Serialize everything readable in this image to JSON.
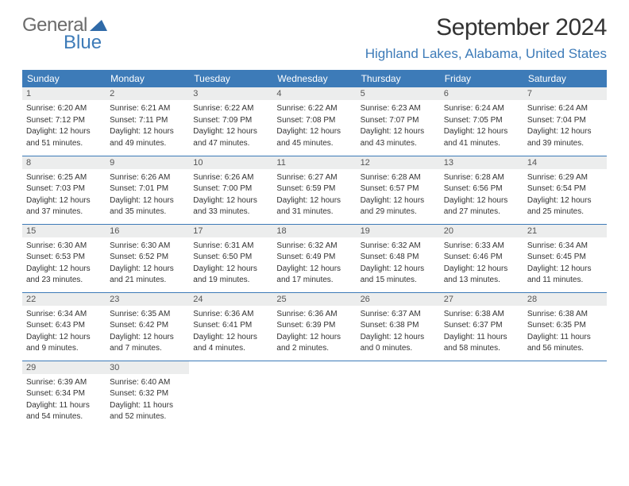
{
  "brand": {
    "name1": "General",
    "name2": "Blue",
    "triangle_color": "#2f6aa8"
  },
  "title": "September 2024",
  "location": "Highland Lakes, Alabama, United States",
  "colors": {
    "header_bg": "#3d7bb8",
    "daynum_bg": "#eceded",
    "rule": "#3d7bb8",
    "text": "#333333"
  },
  "day_headers": [
    "Sunday",
    "Monday",
    "Tuesday",
    "Wednesday",
    "Thursday",
    "Friday",
    "Saturday"
  ],
  "weeks": [
    [
      {
        "n": "1",
        "sr": "Sunrise: 6:20 AM",
        "ss": "Sunset: 7:12 PM",
        "d1": "Daylight: 12 hours",
        "d2": "and 51 minutes."
      },
      {
        "n": "2",
        "sr": "Sunrise: 6:21 AM",
        "ss": "Sunset: 7:11 PM",
        "d1": "Daylight: 12 hours",
        "d2": "and 49 minutes."
      },
      {
        "n": "3",
        "sr": "Sunrise: 6:22 AM",
        "ss": "Sunset: 7:09 PM",
        "d1": "Daylight: 12 hours",
        "d2": "and 47 minutes."
      },
      {
        "n": "4",
        "sr": "Sunrise: 6:22 AM",
        "ss": "Sunset: 7:08 PM",
        "d1": "Daylight: 12 hours",
        "d2": "and 45 minutes."
      },
      {
        "n": "5",
        "sr": "Sunrise: 6:23 AM",
        "ss": "Sunset: 7:07 PM",
        "d1": "Daylight: 12 hours",
        "d2": "and 43 minutes."
      },
      {
        "n": "6",
        "sr": "Sunrise: 6:24 AM",
        "ss": "Sunset: 7:05 PM",
        "d1": "Daylight: 12 hours",
        "d2": "and 41 minutes."
      },
      {
        "n": "7",
        "sr": "Sunrise: 6:24 AM",
        "ss": "Sunset: 7:04 PM",
        "d1": "Daylight: 12 hours",
        "d2": "and 39 minutes."
      }
    ],
    [
      {
        "n": "8",
        "sr": "Sunrise: 6:25 AM",
        "ss": "Sunset: 7:03 PM",
        "d1": "Daylight: 12 hours",
        "d2": "and 37 minutes."
      },
      {
        "n": "9",
        "sr": "Sunrise: 6:26 AM",
        "ss": "Sunset: 7:01 PM",
        "d1": "Daylight: 12 hours",
        "d2": "and 35 minutes."
      },
      {
        "n": "10",
        "sr": "Sunrise: 6:26 AM",
        "ss": "Sunset: 7:00 PM",
        "d1": "Daylight: 12 hours",
        "d2": "and 33 minutes."
      },
      {
        "n": "11",
        "sr": "Sunrise: 6:27 AM",
        "ss": "Sunset: 6:59 PM",
        "d1": "Daylight: 12 hours",
        "d2": "and 31 minutes."
      },
      {
        "n": "12",
        "sr": "Sunrise: 6:28 AM",
        "ss": "Sunset: 6:57 PM",
        "d1": "Daylight: 12 hours",
        "d2": "and 29 minutes."
      },
      {
        "n": "13",
        "sr": "Sunrise: 6:28 AM",
        "ss": "Sunset: 6:56 PM",
        "d1": "Daylight: 12 hours",
        "d2": "and 27 minutes."
      },
      {
        "n": "14",
        "sr": "Sunrise: 6:29 AM",
        "ss": "Sunset: 6:54 PM",
        "d1": "Daylight: 12 hours",
        "d2": "and 25 minutes."
      }
    ],
    [
      {
        "n": "15",
        "sr": "Sunrise: 6:30 AM",
        "ss": "Sunset: 6:53 PM",
        "d1": "Daylight: 12 hours",
        "d2": "and 23 minutes."
      },
      {
        "n": "16",
        "sr": "Sunrise: 6:30 AM",
        "ss": "Sunset: 6:52 PM",
        "d1": "Daylight: 12 hours",
        "d2": "and 21 minutes."
      },
      {
        "n": "17",
        "sr": "Sunrise: 6:31 AM",
        "ss": "Sunset: 6:50 PM",
        "d1": "Daylight: 12 hours",
        "d2": "and 19 minutes."
      },
      {
        "n": "18",
        "sr": "Sunrise: 6:32 AM",
        "ss": "Sunset: 6:49 PM",
        "d1": "Daylight: 12 hours",
        "d2": "and 17 minutes."
      },
      {
        "n": "19",
        "sr": "Sunrise: 6:32 AM",
        "ss": "Sunset: 6:48 PM",
        "d1": "Daylight: 12 hours",
        "d2": "and 15 minutes."
      },
      {
        "n": "20",
        "sr": "Sunrise: 6:33 AM",
        "ss": "Sunset: 6:46 PM",
        "d1": "Daylight: 12 hours",
        "d2": "and 13 minutes."
      },
      {
        "n": "21",
        "sr": "Sunrise: 6:34 AM",
        "ss": "Sunset: 6:45 PM",
        "d1": "Daylight: 12 hours",
        "d2": "and 11 minutes."
      }
    ],
    [
      {
        "n": "22",
        "sr": "Sunrise: 6:34 AM",
        "ss": "Sunset: 6:43 PM",
        "d1": "Daylight: 12 hours",
        "d2": "and 9 minutes."
      },
      {
        "n": "23",
        "sr": "Sunrise: 6:35 AM",
        "ss": "Sunset: 6:42 PM",
        "d1": "Daylight: 12 hours",
        "d2": "and 7 minutes."
      },
      {
        "n": "24",
        "sr": "Sunrise: 6:36 AM",
        "ss": "Sunset: 6:41 PM",
        "d1": "Daylight: 12 hours",
        "d2": "and 4 minutes."
      },
      {
        "n": "25",
        "sr": "Sunrise: 6:36 AM",
        "ss": "Sunset: 6:39 PM",
        "d1": "Daylight: 12 hours",
        "d2": "and 2 minutes."
      },
      {
        "n": "26",
        "sr": "Sunrise: 6:37 AM",
        "ss": "Sunset: 6:38 PM",
        "d1": "Daylight: 12 hours",
        "d2": "and 0 minutes."
      },
      {
        "n": "27",
        "sr": "Sunrise: 6:38 AM",
        "ss": "Sunset: 6:37 PM",
        "d1": "Daylight: 11 hours",
        "d2": "and 58 minutes."
      },
      {
        "n": "28",
        "sr": "Sunrise: 6:38 AM",
        "ss": "Sunset: 6:35 PM",
        "d1": "Daylight: 11 hours",
        "d2": "and 56 minutes."
      }
    ],
    [
      {
        "n": "29",
        "sr": "Sunrise: 6:39 AM",
        "ss": "Sunset: 6:34 PM",
        "d1": "Daylight: 11 hours",
        "d2": "and 54 minutes."
      },
      {
        "n": "30",
        "sr": "Sunrise: 6:40 AM",
        "ss": "Sunset: 6:32 PM",
        "d1": "Daylight: 11 hours",
        "d2": "and 52 minutes."
      },
      null,
      null,
      null,
      null,
      null
    ]
  ]
}
